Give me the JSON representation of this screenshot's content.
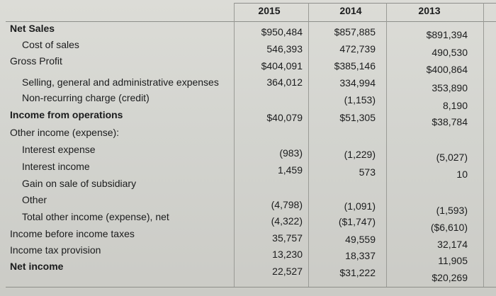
{
  "years": [
    "2015",
    "2014",
    "2013"
  ],
  "rows": [
    {
      "label": "Net Sales",
      "v2015": "$950,484",
      "v2014": "$857,885",
      "v2013": "$891,394"
    },
    {
      "label": "Cost of sales",
      "v2015": "546,393",
      "v2014": "472,739",
      "v2013": "490,530"
    },
    {
      "label": "Gross Profit",
      "v2015": "$404,091",
      "v2014": "$385,146",
      "v2013": "$400,864"
    },
    {
      "label": "Selling, general and administrative expenses",
      "v2015": "364,012",
      "v2014": "334,994",
      "v2013": "353,890"
    },
    {
      "label": "Non-recurring charge (credit)",
      "v2015": "",
      "v2014": "(1,153)",
      "v2013": "8,190"
    },
    {
      "label": "Income from operations",
      "v2015": "$40,079",
      "v2014": "$51,305",
      "v2013": "$38,784"
    },
    {
      "label": "Other income (expense):",
      "v2015": "",
      "v2014": "",
      "v2013": ""
    },
    {
      "label": "Interest expense",
      "v2015": "(983)",
      "v2014": "(1,229)",
      "v2013": "(5,027)"
    },
    {
      "label": "Interest income",
      "v2015": "1,459",
      "v2014": "573",
      "v2013": "10"
    },
    {
      "label": "Gain on sale of subsidiary",
      "v2015": "",
      "v2014": "",
      "v2013": ""
    },
    {
      "label": "Other",
      "v2015": "(4,798)",
      "v2014": "(1,091)",
      "v2013": "(1,593)"
    },
    {
      "label": "Total other income (expense), net",
      "v2015": "(4,322)",
      "v2014": "($1,747)",
      "v2013": "($6,610)"
    },
    {
      "label": "Income before income taxes",
      "v2015": "35,757",
      "v2014": "49,559",
      "v2013": "32,174"
    },
    {
      "label": "Income tax provision",
      "v2015": "13,230",
      "v2014": "18,337",
      "v2013": "11,905"
    },
    {
      "label": "Net income",
      "v2015": "22,527",
      "v2014": "$31,222",
      "v2013": "$20,269"
    }
  ]
}
